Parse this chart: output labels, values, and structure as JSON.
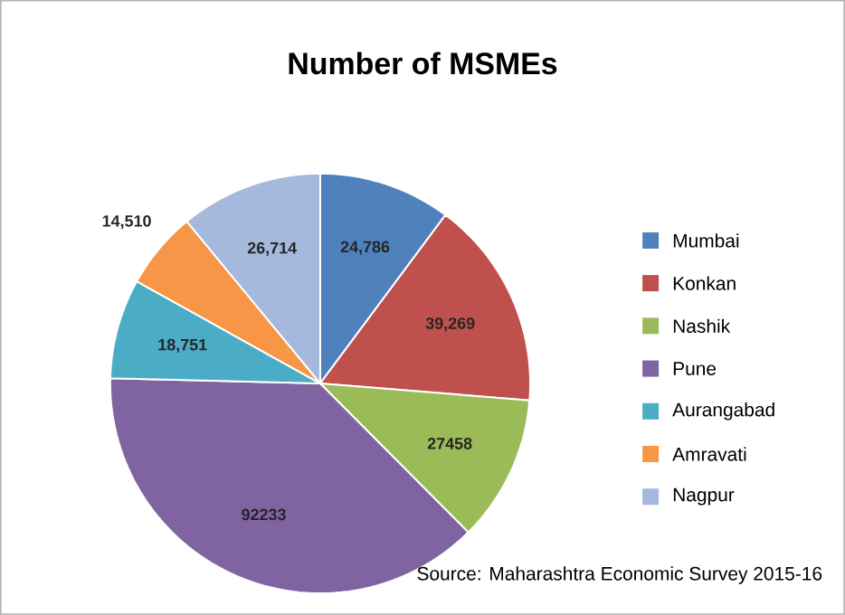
{
  "chart_data": {
    "type": "pie",
    "title": "Number of MSMEs",
    "categories": [
      "Mumbai",
      "Konkan",
      "Nashik",
      "Pune",
      "Aurangabad",
      "Amravati",
      "Nagpur"
    ],
    "values": [
      24786,
      39269,
      27458,
      92233,
      18751,
      14510,
      26714
    ],
    "value_labels": [
      "24,786",
      "39,269",
      "27458",
      "92233",
      "18,751",
      "14,510",
      "26,714"
    ],
    "colors": [
      "#4f81bd",
      "#c0504d",
      "#9bbb59",
      "#8064a2",
      "#4bacc6",
      "#f79646",
      "#a5b9dc"
    ],
    "legend": "right",
    "annotations": [
      "Source: Maharashtra Economic Survey 2015-16"
    ]
  }
}
